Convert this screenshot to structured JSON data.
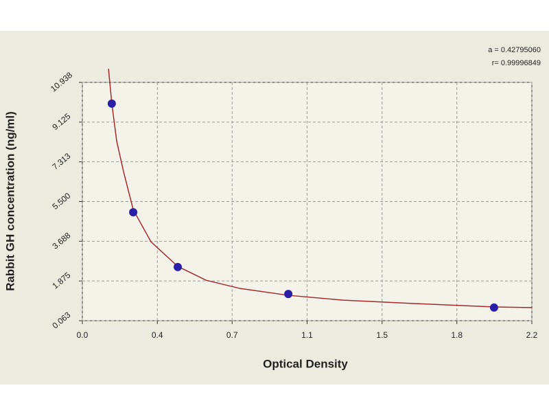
{
  "chart_data": {
    "type": "scatter",
    "x_label": "Optical Density",
    "y_label": "Rabbit GH concentration (ng/ml)",
    "annotations": [
      "a = 0.42795060",
      "r= 0.99996849"
    ],
    "xlim": [
      0,
      2.2
    ],
    "ylim": [
      0.0625,
      10.9375
    ],
    "xticks": [
      {
        "value": 0,
        "label": "0.0"
      },
      {
        "value": 0.367,
        "label": "0.4"
      },
      {
        "value": 0.733,
        "label": "0.7"
      },
      {
        "value": 1.1,
        "label": "1.1"
      },
      {
        "value": 1.467,
        "label": "1.5"
      },
      {
        "value": 1.833,
        "label": "1.8"
      },
      {
        "value": 2.2,
        "label": "2.2"
      }
    ],
    "yticks": [
      {
        "value": 0.0625,
        "label": "0.063"
      },
      {
        "value": 1.875,
        "label": "1.875"
      },
      {
        "value": 3.6875,
        "label": "3.688"
      },
      {
        "value": 5.5,
        "label": "5.500"
      },
      {
        "value": 7.3125,
        "label": "7.313"
      },
      {
        "value": 9.125,
        "label": "9.125"
      },
      {
        "value": 10.9375,
        "label": "10.938"
      }
    ],
    "grid": true,
    "points": {
      "color": "#2b1fa8",
      "x": [
        0.144,
        0.249,
        0.467,
        1.008,
        2.015
      ],
      "values": [
        9.97,
        5.01,
        2.51,
        1.28,
        0.66
      ]
    },
    "curve": {
      "color": "#a52a2a",
      "x": [
        0.128,
        0.144,
        0.168,
        0.202,
        0.249,
        0.336,
        0.467,
        0.605,
        0.773,
        1.008,
        1.276,
        1.612,
        2.015,
        2.2
      ],
      "values": [
        11.56,
        9.99,
        8.26,
        6.85,
        5.13,
        3.66,
        2.54,
        1.91,
        1.53,
        1.22,
        1.0,
        0.85,
        0.69,
        0.66
      ]
    }
  }
}
